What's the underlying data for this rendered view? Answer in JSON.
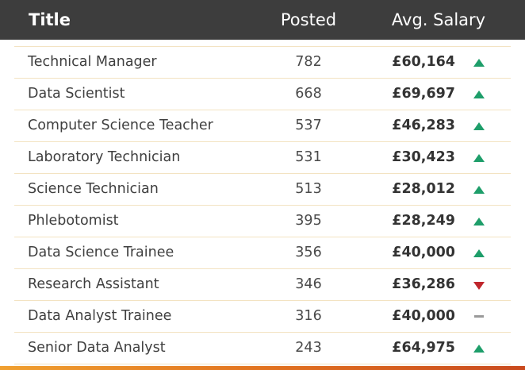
{
  "header": {
    "title_label": "Title",
    "posted_label": "Posted",
    "salary_label": "Avg. Salary"
  },
  "rows": [
    {
      "title": "Technical Manager",
      "posted": "782",
      "salary": "£60,164",
      "trend": "up"
    },
    {
      "title": "Data Scientist",
      "posted": "668",
      "salary": "£69,697",
      "trend": "up"
    },
    {
      "title": "Computer Science Teacher",
      "posted": "537",
      "salary": "£46,283",
      "trend": "up"
    },
    {
      "title": "Laboratory Technician",
      "posted": "531",
      "salary": "£30,423",
      "trend": "up"
    },
    {
      "title": "Science Technician",
      "posted": "513",
      "salary": "£28,012",
      "trend": "up"
    },
    {
      "title": "Phlebotomist",
      "posted": "395",
      "salary": "£28,249",
      "trend": "up"
    },
    {
      "title": "Data Science Trainee",
      "posted": "356",
      "salary": "£40,000",
      "trend": "up"
    },
    {
      "title": "Research Assistant",
      "posted": "346",
      "salary": "£36,286",
      "trend": "down"
    },
    {
      "title": "Data Analyst Trainee",
      "posted": "316",
      "salary": "£40,000",
      "trend": "flat"
    },
    {
      "title": "Senior Data Analyst",
      "posted": "243",
      "salary": "£64,975",
      "trend": "up"
    }
  ],
  "colors": {
    "header_bg": "#3d3d3d",
    "trend_up": "#1e9e6a",
    "trend_down": "#c0272d",
    "trend_flat": "#9a9a9a",
    "row_divider": "#f3e3c2"
  },
  "icons": {
    "up": "triangle-up-icon",
    "down": "triangle-down-icon",
    "flat": "dash-icon"
  }
}
